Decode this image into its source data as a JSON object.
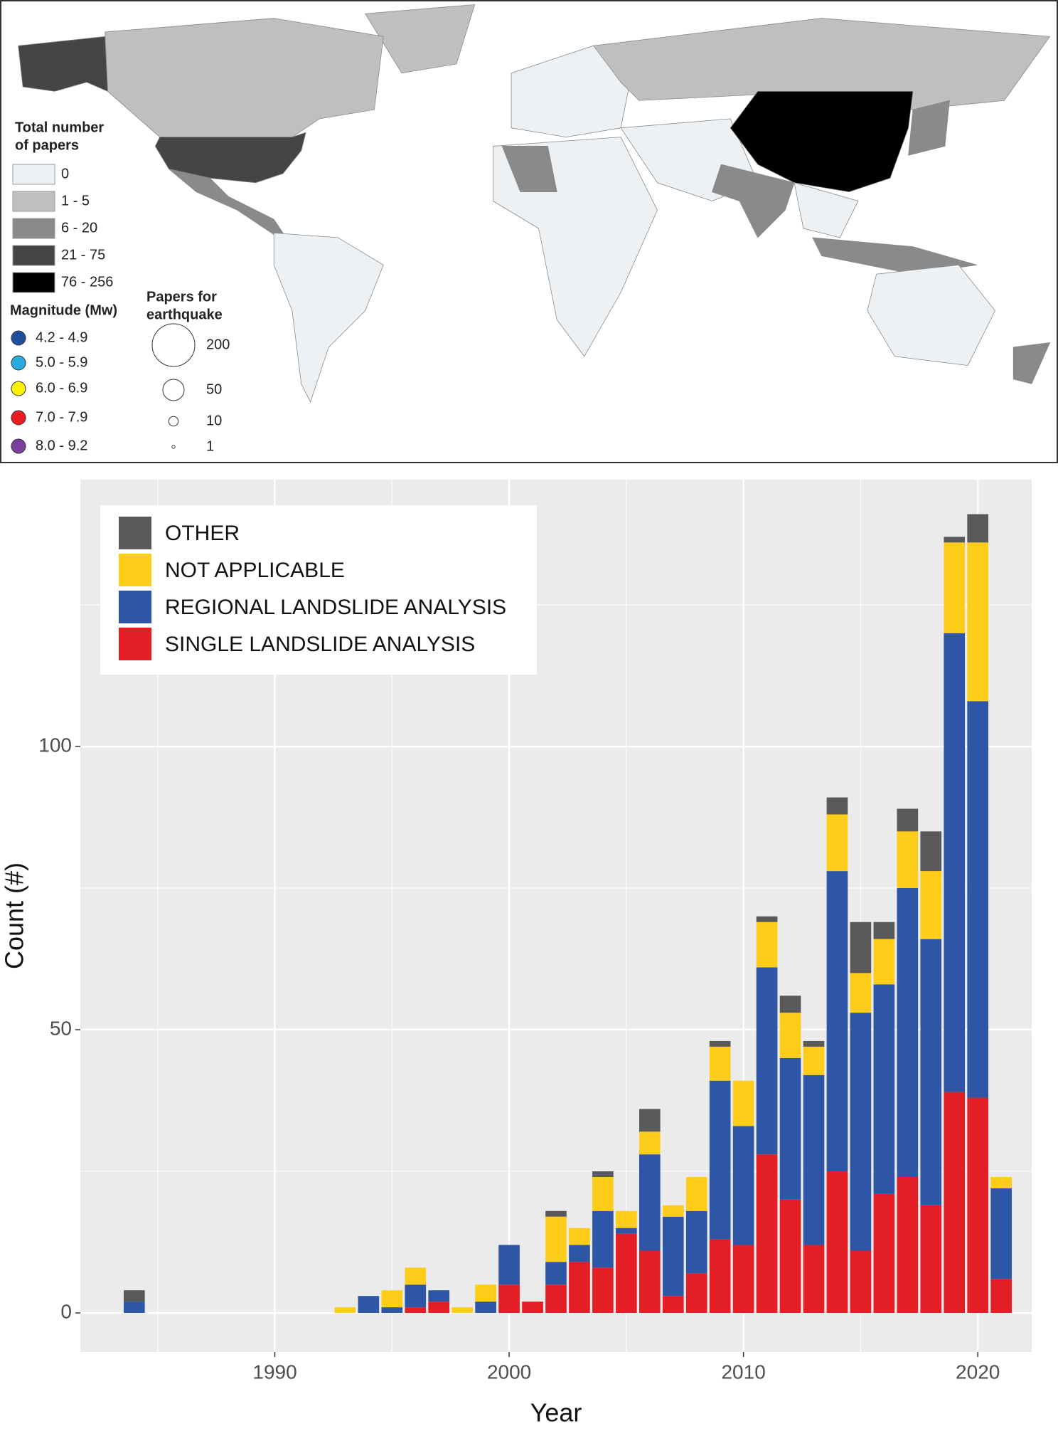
{
  "chart_data": [
    {
      "type": "map",
      "fill_legend": {
        "title": [
          "Total number",
          "of papers"
        ],
        "classes": [
          {
            "label": "0",
            "color": "#eef1f4"
          },
          {
            "label": "1 - 5",
            "color": "#bfbfbf"
          },
          {
            "label": "6 - 20",
            "color": "#8a8a8a"
          },
          {
            "label": "21 - 75",
            "color": "#454545"
          },
          {
            "label": "76 - 256",
            "color": "#000000"
          }
        ]
      },
      "magnitude_legend": {
        "title": "Magnitude (Mw)",
        "classes": [
          {
            "label": "4.2 - 4.9",
            "color": "#1f4e9c"
          },
          {
            "label": "5.0 - 5.9",
            "color": "#29abe2"
          },
          {
            "label": "6.0 - 6.9",
            "color": "#fff200"
          },
          {
            "label": "7.0 - 7.9",
            "color": "#ed1c24"
          },
          {
            "label": "8.0 - 9.2",
            "color": "#7b3f9e"
          }
        ]
      },
      "size_legend": {
        "title": [
          "Papers for",
          "earthquake"
        ],
        "values": [
          200,
          50,
          10,
          1
        ]
      }
    },
    {
      "type": "stacked_bar",
      "xlabel": "Year",
      "ylabel": "Count (#)",
      "x": [
        1984,
        1993,
        1994,
        1995,
        1996,
        1997,
        1998,
        1999,
        2000,
        2001,
        2002,
        2003,
        2004,
        2005,
        2006,
        2007,
        2008,
        2009,
        2010,
        2011,
        2012,
        2013,
        2014,
        2015,
        2016,
        2017,
        2018,
        2019,
        2020,
        2021
      ],
      "series": [
        {
          "name": "SINGLE LANDSLIDE ANALYSIS",
          "color": "#e31e24",
          "values": [
            0,
            0,
            0,
            0,
            1,
            2,
            0,
            0,
            5,
            2,
            5,
            9,
            8,
            14,
            11,
            3,
            7,
            13,
            12,
            28,
            20,
            12,
            25,
            11,
            21,
            24,
            19,
            39,
            38,
            6
          ]
        },
        {
          "name": "REGIONAL LANDSLIDE ANALYSIS",
          "color": "#2d56a6",
          "values": [
            2,
            0,
            3,
            1,
            4,
            2,
            0,
            2,
            7,
            0,
            4,
            3,
            10,
            1,
            17,
            14,
            11,
            28,
            21,
            33,
            25,
            30,
            53,
            42,
            37,
            51,
            47,
            81,
            70,
            16
          ]
        },
        {
          "name": "NOT APPLICABLE",
          "color": "#fdcd1a",
          "values": [
            0,
            1,
            0,
            3,
            3,
            0,
            1,
            3,
            0,
            0,
            8,
            3,
            6,
            3,
            4,
            2,
            6,
            6,
            8,
            8,
            8,
            5,
            10,
            7,
            8,
            10,
            12,
            16,
            28,
            2
          ]
        },
        {
          "name": "OTHER",
          "color": "#595959",
          "values": [
            2,
            0,
            0,
            0,
            0,
            0,
            0,
            0,
            0,
            0,
            1,
            0,
            1,
            0,
            4,
            0,
            0,
            1,
            0,
            1,
            3,
            1,
            3,
            9,
            3,
            4,
            7,
            1,
            5,
            0
          ]
        }
      ],
      "xlim": [
        1981.7,
        2022.3
      ],
      "xticks": [
        1990,
        2000,
        2010,
        2020
      ],
      "xminor": [
        1985,
        1995,
        2005,
        2015
      ],
      "ylim": [
        -6.9,
        147.1
      ],
      "yticks": [
        0,
        50,
        100
      ],
      "yminor": [
        25,
        75,
        125
      ],
      "grid": true
    }
  ]
}
